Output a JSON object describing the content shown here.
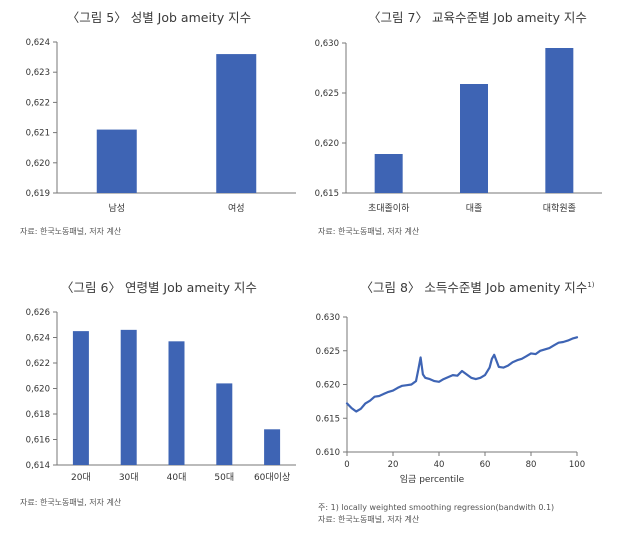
{
  "colors": {
    "bar": "#3e64b4",
    "line": "#3e64b4",
    "axis": "#777777",
    "text": "#333333"
  },
  "chart_data": [
    {
      "id": "fig5",
      "type": "bar",
      "title": "〈그림 5〉 성별 Job ameity 지수",
      "title_sup": "",
      "categories": [
        "남성",
        "여성"
      ],
      "values": [
        0.6211,
        0.6236
      ],
      "ylim": [
        0.619,
        0.624
      ],
      "yticks": [
        0.619,
        0.62,
        0.621,
        0.622,
        0.623,
        0.624
      ],
      "ytick_labels": [
        "0,619",
        "0,620",
        "0,621",
        "0,622",
        "0,623",
        "0,624"
      ],
      "xlabel": "",
      "ylabel": "",
      "notes": [
        "자료: 한국노동패널, 저자 계산"
      ]
    },
    {
      "id": "fig7",
      "type": "bar",
      "title": "〈그림 7〉 교육수준별 Job ameity 지수",
      "title_sup": "",
      "categories": [
        "초대졸이하",
        "대졸",
        "대학원졸"
      ],
      "values": [
        0.6189,
        0.6259,
        0.6295
      ],
      "ylim": [
        0.615,
        0.63
      ],
      "yticks": [
        0.615,
        0.62,
        0.625,
        0.63
      ],
      "ytick_labels": [
        "0,615",
        "0,620",
        "0,625",
        "0,630"
      ],
      "xlabel": "",
      "ylabel": "",
      "notes": [
        "자료: 한국노동패널, 저자 계산"
      ]
    },
    {
      "id": "fig6",
      "type": "bar",
      "title": "〈그림 6〉 연령별 Job ameity 지수",
      "title_sup": "",
      "categories": [
        "20대",
        "30대",
        "40대",
        "50대",
        "60대이상"
      ],
      "values": [
        0.6245,
        0.6246,
        0.6237,
        0.6204,
        0.6168
      ],
      "ylim": [
        0.614,
        0.626
      ],
      "yticks": [
        0.614,
        0.616,
        0.618,
        0.62,
        0.622,
        0.624,
        0.626
      ],
      "ytick_labels": [
        "0,614",
        "0,616",
        "0,618",
        "0,620",
        "0,622",
        "0,624",
        "0,626"
      ],
      "xlabel": "",
      "ylabel": "",
      "notes": [
        "자료: 한국노동패널, 저자 계산"
      ]
    },
    {
      "id": "fig8",
      "type": "line",
      "title": "〈그림 8〉 소득수준별 Job amenity 지수",
      "title_sup": "1)",
      "x": [
        0,
        2,
        4,
        6,
        8,
        10,
        12,
        14,
        16,
        18,
        20,
        22,
        24,
        26,
        28,
        30,
        31,
        32,
        33,
        34,
        36,
        38,
        40,
        42,
        44,
        46,
        48,
        50,
        52,
        54,
        56,
        58,
        60,
        62,
        63,
        64,
        65,
        66,
        68,
        70,
        72,
        74,
        76,
        78,
        80,
        82,
        84,
        86,
        88,
        90,
        92,
        94,
        96,
        98,
        100
      ],
      "y": [
        0.6172,
        0.6165,
        0.616,
        0.6164,
        0.6172,
        0.6176,
        0.6182,
        0.6183,
        0.6186,
        0.6189,
        0.6191,
        0.6195,
        0.6198,
        0.6199,
        0.62,
        0.6205,
        0.6222,
        0.624,
        0.6215,
        0.621,
        0.6208,
        0.6205,
        0.6204,
        0.6208,
        0.6211,
        0.6214,
        0.6213,
        0.622,
        0.6215,
        0.621,
        0.6208,
        0.621,
        0.6214,
        0.6225,
        0.6238,
        0.6244,
        0.6235,
        0.6226,
        0.6225,
        0.6228,
        0.6233,
        0.6236,
        0.6238,
        0.6242,
        0.6246,
        0.6245,
        0.625,
        0.6252,
        0.6254,
        0.6258,
        0.6262,
        0.6263,
        0.6265,
        0.6268,
        0.627
      ],
      "xlim": [
        0,
        100
      ],
      "ylim": [
        0.61,
        0.63
      ],
      "xticks": [
        0,
        20,
        40,
        60,
        80,
        100
      ],
      "xtick_labels": [
        "0",
        "20",
        "40",
        "60",
        "80",
        "100"
      ],
      "yticks": [
        0.61,
        0.615,
        0.62,
        0.625,
        0.63
      ],
      "ytick_labels": [
        "0.610",
        "0.615",
        "0.620",
        "0.625",
        "0.630"
      ],
      "xlabel": "임금 percentile",
      "ylabel": "",
      "notes": [
        "주: 1) locally weighted smoothing regression(bandwith 0.1)",
        "자료: 한국노동패널, 저자 계산"
      ]
    }
  ]
}
